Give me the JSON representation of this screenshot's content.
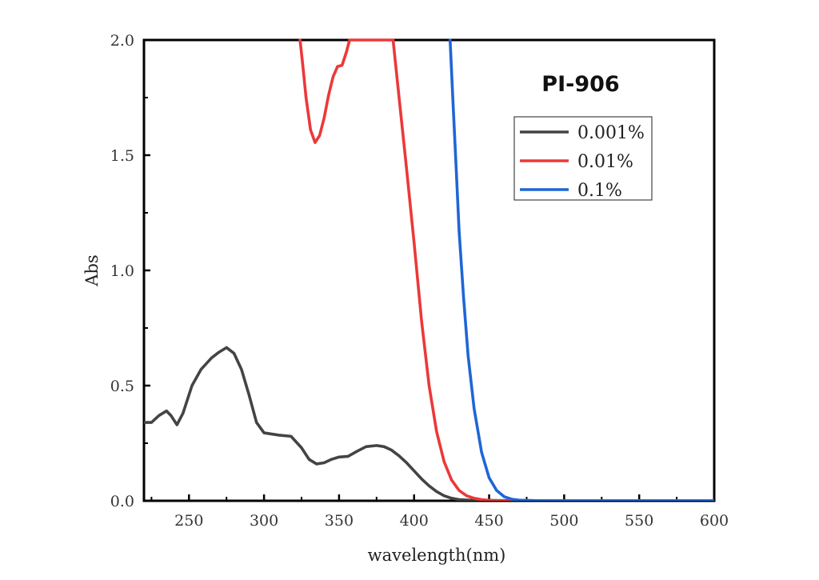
{
  "chart_data": {
    "type": "line",
    "title": "PI-906",
    "xlabel": "wavelength(nm)",
    "ylabel": "Abs",
    "xlim": [
      220,
      600
    ],
    "ylim": [
      0,
      2.0
    ],
    "x_ticks": [
      250,
      300,
      350,
      400,
      450,
      500,
      550,
      600
    ],
    "x_tick_labels": [
      "250",
      "300",
      "350",
      "400",
      "450",
      "500",
      "550",
      "600"
    ],
    "y_ticks": [
      0,
      0.5,
      1.0,
      1.5,
      2.0
    ],
    "y_tick_labels": [
      "0.0",
      "0.5",
      "1.0",
      "1.5",
      "2.0"
    ],
    "grid": false,
    "legend_position": "top-right",
    "series": [
      {
        "name": "0.001%",
        "color": "#444444",
        "points": [
          [
            220,
            0.34
          ],
          [
            225,
            0.34
          ],
          [
            230,
            0.37
          ],
          [
            235,
            0.39
          ],
          [
            238,
            0.37
          ],
          [
            242,
            0.33
          ],
          [
            246,
            0.38
          ],
          [
            252,
            0.5
          ],
          [
            258,
            0.57
          ],
          [
            265,
            0.62
          ],
          [
            270,
            0.645
          ],
          [
            275,
            0.665
          ],
          [
            280,
            0.64
          ],
          [
            285,
            0.57
          ],
          [
            290,
            0.46
          ],
          [
            295,
            0.34
          ],
          [
            300,
            0.295
          ],
          [
            310,
            0.285
          ],
          [
            318,
            0.28
          ],
          [
            325,
            0.23
          ],
          [
            330,
            0.18
          ],
          [
            335,
            0.16
          ],
          [
            340,
            0.165
          ],
          [
            345,
            0.18
          ],
          [
            350,
            0.19
          ],
          [
            356,
            0.193
          ],
          [
            362,
            0.215
          ],
          [
            368,
            0.235
          ],
          [
            375,
            0.24
          ],
          [
            380,
            0.235
          ],
          [
            385,
            0.22
          ],
          [
            390,
            0.195
          ],
          [
            395,
            0.165
          ],
          [
            400,
            0.13
          ],
          [
            405,
            0.095
          ],
          [
            410,
            0.065
          ],
          [
            415,
            0.04
          ],
          [
            420,
            0.022
          ],
          [
            425,
            0.011
          ],
          [
            430,
            0.005
          ],
          [
            440,
            0.002
          ],
          [
            460,
            0.001
          ],
          [
            500,
            0.0
          ],
          [
            600,
            0.0
          ]
        ]
      },
      {
        "name": "0.01%",
        "color": "#ec3838",
        "points": [
          [
            324,
            2.0
          ],
          [
            326,
            1.88
          ],
          [
            328,
            1.75
          ],
          [
            331,
            1.61
          ],
          [
            334,
            1.555
          ],
          [
            337,
            1.585
          ],
          [
            340,
            1.66
          ],
          [
            343,
            1.76
          ],
          [
            346,
            1.84
          ],
          [
            349,
            1.885
          ],
          [
            352,
            1.89
          ],
          [
            355,
            1.95
          ],
          [
            357,
            2.0
          ],
          [
            386,
            2.0
          ],
          [
            390,
            1.75
          ],
          [
            395,
            1.44
          ],
          [
            400,
            1.12
          ],
          [
            405,
            0.78
          ],
          [
            410,
            0.5
          ],
          [
            415,
            0.3
          ],
          [
            420,
            0.17
          ],
          [
            425,
            0.09
          ],
          [
            430,
            0.045
          ],
          [
            435,
            0.022
          ],
          [
            440,
            0.011
          ],
          [
            445,
            0.005
          ],
          [
            450,
            0.002
          ],
          [
            460,
            0.0
          ],
          [
            600,
            0.0
          ]
        ]
      },
      {
        "name": "0.1%",
        "color": "#1f66d6",
        "points": [
          [
            424,
            2.0
          ],
          [
            426,
            1.72
          ],
          [
            428,
            1.45
          ],
          [
            430,
            1.17
          ],
          [
            433,
            0.88
          ],
          [
            436,
            0.63
          ],
          [
            440,
            0.4
          ],
          [
            445,
            0.21
          ],
          [
            450,
            0.1
          ],
          [
            455,
            0.045
          ],
          [
            460,
            0.018
          ],
          [
            465,
            0.007
          ],
          [
            470,
            0.003
          ],
          [
            480,
            0.001
          ],
          [
            500,
            0.0
          ],
          [
            600,
            0.0
          ]
        ]
      }
    ]
  }
}
